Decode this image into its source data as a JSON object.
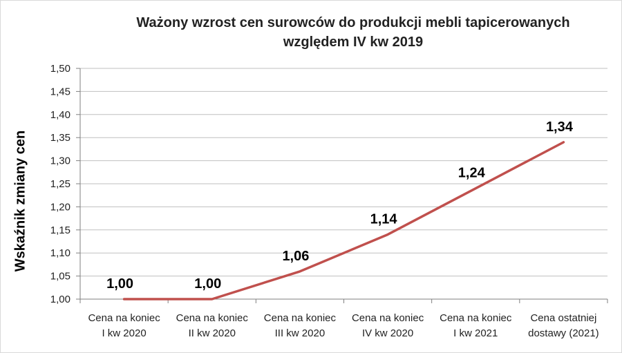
{
  "chart_data": {
    "type": "line",
    "title_lines": [
      "Ważony wzrost cen surowców do produkcji mebli tapicerowanych",
      "względem IV kw 2019"
    ],
    "xlabel": "",
    "ylabel": "Wskaźnik zmiany cen",
    "ylim": [
      1.0,
      1.5
    ],
    "y_ticks": [
      "1,00",
      "1,05",
      "1,10",
      "1,15",
      "1,20",
      "1,25",
      "1,30",
      "1,35",
      "1,40",
      "1,45",
      "1,50"
    ],
    "grid": true,
    "legend": "none",
    "categories": [
      [
        "Cena na koniec",
        "I kw 2020"
      ],
      [
        "Cena na koniec",
        "II kw 2020"
      ],
      [
        "Cena na koniec",
        "III kw 2020"
      ],
      [
        "Cena na koniec",
        "IV kw 2020"
      ],
      [
        "Cena na koniec",
        "I kw 2021"
      ],
      [
        "Cena ostatniej",
        "dostawy (2021)"
      ]
    ],
    "series": [
      {
        "values": [
          1.0,
          1.0,
          1.06,
          1.14,
          1.24,
          1.34
        ],
        "data_labels": [
          "1,00",
          "1,00",
          "1,06",
          "1,14",
          "1,24",
          "1,34"
        ],
        "color": "#c0504d"
      }
    ],
    "colors": {
      "grid": "#bfbfbf",
      "axis": "#7f7f7f"
    }
  }
}
